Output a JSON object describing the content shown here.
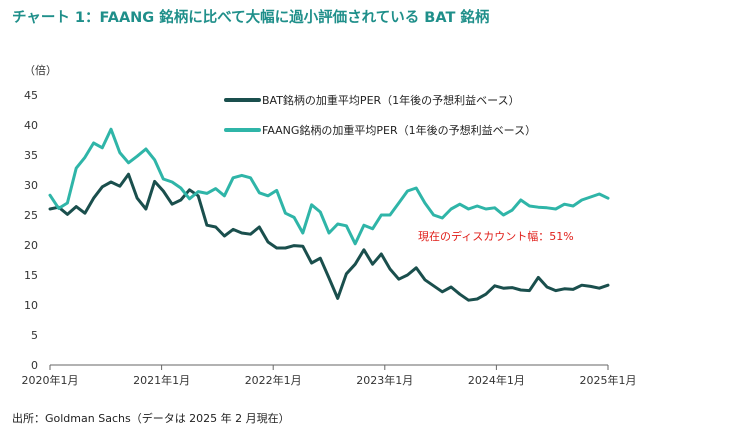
{
  "title": "チャート 1：FAANG 銘柄に比べて大幅に過小評価されている BAT 銘柄",
  "source": "出所：Goldman Sachs（データは 2025 年 2 月現在）",
  "colors": {
    "bat": "#1a4f4d",
    "faang": "#2fb5a8",
    "annotation": "#e0201b",
    "title": "#1f8f8a"
  },
  "chart_data": {
    "type": "line",
    "title": "チャート 1：FAANG 銘柄に比べて大幅に過小評価されている BAT 銘柄",
    "ylabel": "（倍）",
    "xlabel": "",
    "ylim": [
      0,
      45
    ],
    "yticks": [
      0,
      5,
      10,
      15,
      20,
      25,
      30,
      35,
      40,
      45
    ],
    "xticks": [
      "2020年1月",
      "2021年1月",
      "2022年1月",
      "2023年1月",
      "2024年1月",
      "2025年1月"
    ],
    "x_start": "2020-01",
    "x_end": "2025-01",
    "grid": false,
    "legend_position": "top-center",
    "annotation": "現在のディスカウント幅：51%",
    "series": [
      {
        "name": "BAT銘柄の加重平均PER（1年後の予想利益ベース）",
        "color": "#1a4f4d",
        "values": [
          26,
          26.3,
          25.1,
          26.4,
          25.3,
          27.8,
          29.7,
          30.5,
          29.8,
          31.8,
          27.8,
          26.0,
          30.6,
          29.0,
          26.8,
          27.5,
          29.2,
          28.2,
          23.3,
          23.0,
          21.5,
          22.6,
          22.0,
          21.8,
          23.0,
          20.5,
          19.5,
          19.5,
          19.9,
          19.8,
          17.0,
          17.8,
          14.5,
          11.1,
          15.2,
          16.8,
          19.2,
          16.8,
          18.5,
          16.0,
          14.3,
          15.0,
          16.2,
          14.2,
          13.2,
          12.2,
          13.0,
          11.8,
          10.8,
          11.0,
          11.8,
          13.2,
          12.8,
          12.9,
          12.5,
          12.4,
          14.6,
          13.0,
          12.4,
          12.7,
          12.6,
          13.3,
          13.1,
          12.8,
          13.3
        ]
      },
      {
        "name": "FAANG銘柄の加重平均PER（1年後の予想利益ベース）",
        "color": "#2fb5a8",
        "values": [
          28.3,
          26.1,
          27.0,
          32.8,
          34.6,
          37.0,
          36.2,
          39.3,
          35.4,
          33.7,
          34.8,
          36.0,
          34.2,
          31.0,
          30.5,
          29.5,
          27.7,
          28.9,
          28.6,
          29.4,
          28.2,
          31.2,
          31.6,
          31.2,
          28.7,
          28.2,
          29.1,
          25.3,
          24.6,
          22.0,
          26.7,
          25.5,
          22.0,
          23.5,
          23.2,
          20.2,
          23.3,
          22.7,
          25.0,
          25.0,
          27.0,
          29.0,
          29.5,
          27.0,
          25.0,
          24.5,
          26.0,
          26.8,
          26.0,
          26.5,
          26.0,
          26.2,
          25.0,
          25.8,
          27.5,
          26.5,
          26.3,
          26.2,
          26.0,
          26.8,
          26.5,
          27.5,
          28.0,
          28.5,
          27.8
        ]
      }
    ]
  }
}
